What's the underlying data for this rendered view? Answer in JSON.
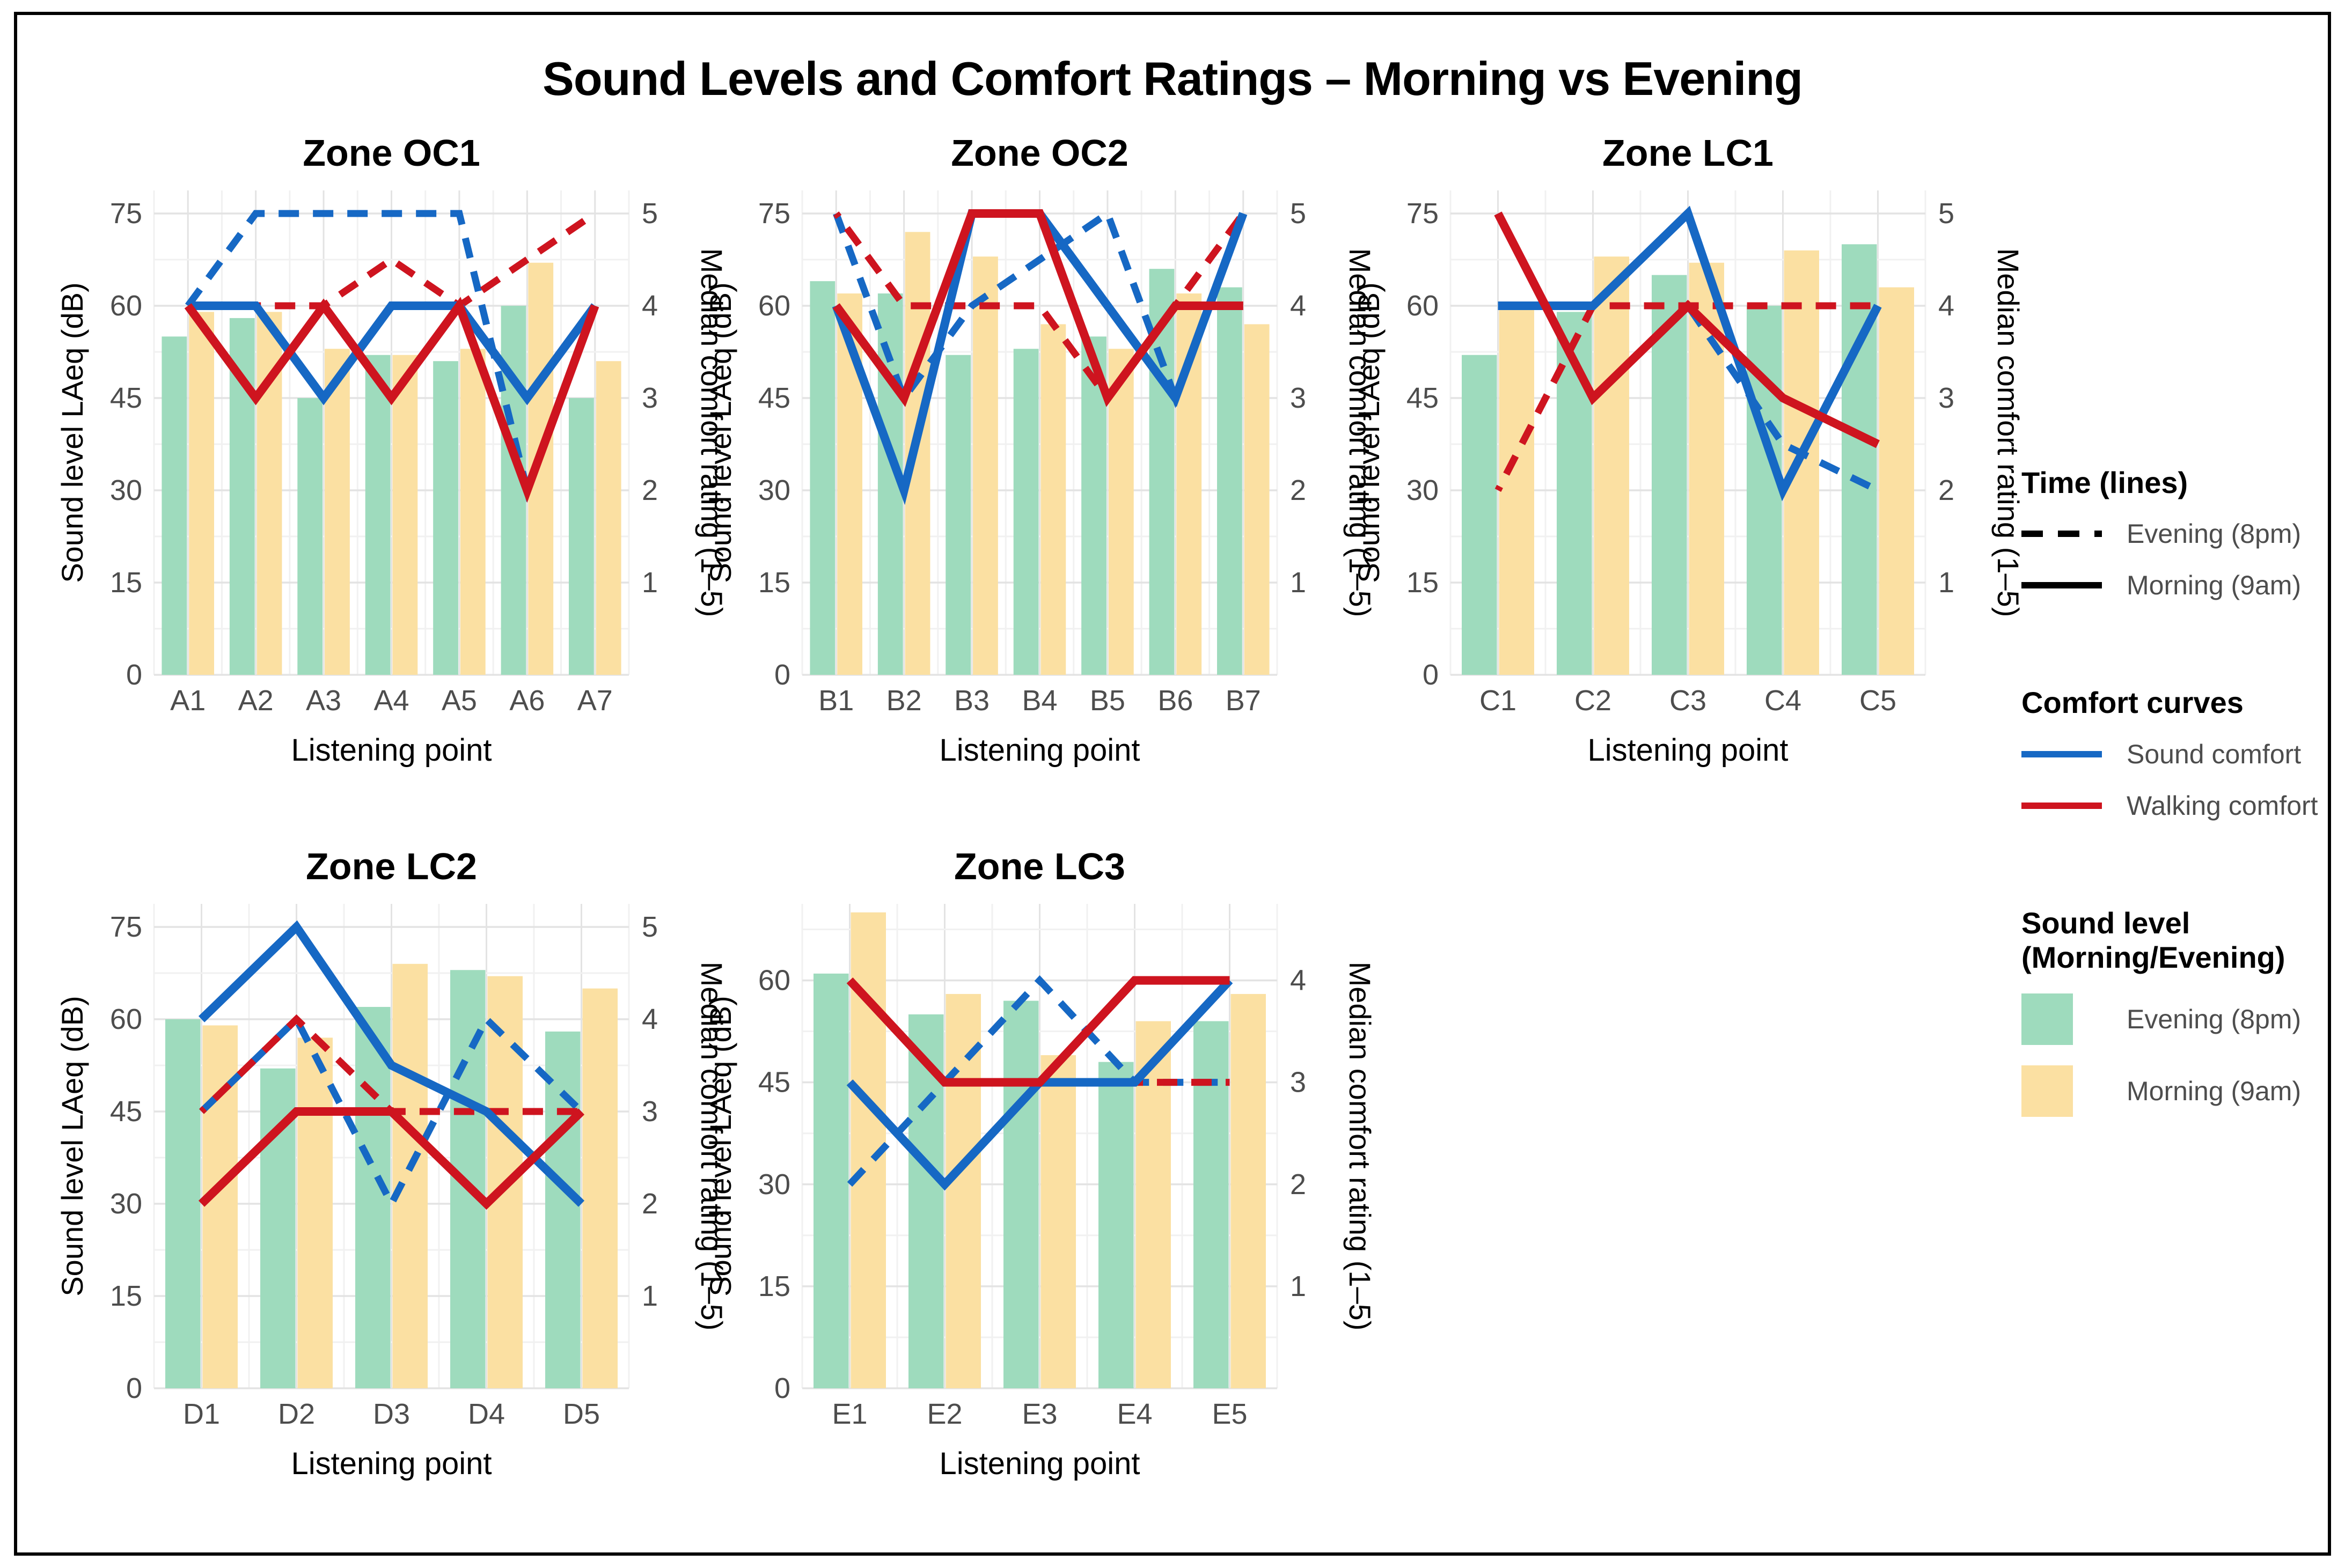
{
  "figure": {
    "title": "Sound Levels and Comfort Ratings – Morning vs Evening"
  },
  "colors": {
    "evening_bar": "#9edbbd",
    "morning_bar": "#fbe0a2",
    "sound_comfort": "#1668c4",
    "walking_comfort": "#ce141f",
    "time_line_key": "#000000",
    "tick_text": "#4d4d4d",
    "grid_major": "#e3e3e3",
    "grid_minor": "#f1f1f1"
  },
  "legend": {
    "time_header": "Time (lines)",
    "time_items": [
      {
        "label": "Evening (8pm)",
        "style": "dashed"
      },
      {
        "label": "Morning (9am)",
        "style": "solid"
      }
    ],
    "comfort_header": "Comfort curves",
    "comfort_items": [
      {
        "label": "Sound comfort",
        "color_key": "sound_comfort"
      },
      {
        "label": "Walking comfort",
        "color_key": "walking_comfort"
      }
    ],
    "sound_header_line1": "Sound level",
    "sound_header_line2": "(Morning/Evening)",
    "sound_items": [
      {
        "label": "Evening (8pm)",
        "color_key": "evening_bar"
      },
      {
        "label": "Morning (9am)",
        "color_key": "morning_bar"
      }
    ]
  },
  "chart_data": [
    {
      "type": "bar+line-dual-axis",
      "title": "Zone OC1",
      "categories": [
        "A1",
        "A2",
        "A3",
        "A4",
        "A5",
        "A6",
        "A7"
      ],
      "xlabel": "Listening point",
      "ylabel_left": "Sound level LAeq (dB)",
      "ylabel_right": "Median comfort rating (1–5)",
      "left_axis_max": 75,
      "ylim_top": 78.75,
      "right_axis_note": "rating r is plotted at 15×r dB",
      "bars_dB": {
        "evening_8pm": [
          55,
          58,
          45,
          52,
          51,
          60,
          45
        ],
        "morning_9am": [
          59,
          59,
          53,
          52,
          53,
          67,
          51
        ]
      },
      "comfort_ratings": {
        "sound_evening": [
          4,
          5,
          5,
          5,
          5,
          2,
          4
        ],
        "sound_morning": [
          4,
          4,
          3,
          4,
          4,
          3,
          4
        ],
        "walking_evening": [
          4,
          4,
          4,
          4.5,
          4,
          4.5,
          5
        ],
        "walking_morning": [
          4,
          3,
          4,
          3,
          4,
          2,
          4
        ]
      }
    },
    {
      "type": "bar+line-dual-axis",
      "title": "Zone OC2",
      "categories": [
        "B1",
        "B2",
        "B3",
        "B4",
        "B5",
        "B6",
        "B7"
      ],
      "xlabel": "Listening point",
      "ylabel_left": "Sound level LAeq (dB)",
      "ylabel_right": "Median comfort rating (1–5)",
      "left_axis_max": 75,
      "ylim_top": 78.75,
      "right_axis_note": "rating r is plotted at 15×r dB",
      "bars_dB": {
        "evening_8pm": [
          64,
          62,
          52,
          53,
          55,
          66,
          63
        ],
        "morning_9am": [
          62,
          72,
          68,
          57,
          53,
          62,
          57
        ]
      },
      "comfort_ratings": {
        "sound_evening": [
          5,
          3,
          4,
          4.5,
          5,
          3,
          5
        ],
        "sound_morning": [
          4,
          2,
          5,
          5,
          4,
          3,
          5
        ],
        "walking_evening": [
          5,
          4,
          4,
          4,
          3,
          4,
          5
        ],
        "walking_morning": [
          4,
          3,
          5,
          5,
          3,
          4,
          4
        ]
      }
    },
    {
      "type": "bar+line-dual-axis",
      "title": "Zone LC1",
      "categories": [
        "C1",
        "C2",
        "C3",
        "C4",
        "C5"
      ],
      "xlabel": "Listening point",
      "ylabel_left": "Sound level LAeq (dB)",
      "ylabel_right": "Median comfort rating (1–5)",
      "left_axis_max": 75,
      "ylim_top": 78.75,
      "right_axis_note": "rating r is plotted at 15×r dB",
      "bars_dB": {
        "evening_8pm": [
          52,
          59,
          65,
          60,
          70
        ],
        "morning_9am": [
          60,
          68,
          67,
          69,
          63
        ]
      },
      "comfort_ratings": {
        "sound_evening": [
          5,
          3,
          4,
          2.5,
          2
        ],
        "sound_morning": [
          4,
          4,
          5,
          2,
          4
        ],
        "walking_evening": [
          2,
          4,
          4,
          4,
          4
        ],
        "walking_morning": [
          5,
          3,
          4,
          3,
          2.5
        ]
      }
    },
    {
      "type": "bar+line-dual-axis",
      "title": "Zone LC2",
      "categories": [
        "D1",
        "D2",
        "D3",
        "D4",
        "D5"
      ],
      "xlabel": "Listening point",
      "ylabel_left": "Sound level LAeq (dB)",
      "ylabel_right": "Median comfort rating (1–5)",
      "left_axis_max": 75,
      "ylim_top": 78.75,
      "right_axis_note": "rating r is plotted at 15×r dB",
      "bars_dB": {
        "evening_8pm": [
          60,
          52,
          62,
          68,
          58
        ],
        "morning_9am": [
          59,
          57,
          69,
          67,
          65
        ]
      },
      "comfort_ratings": {
        "sound_evening": [
          3,
          4,
          2,
          4,
          3
        ],
        "sound_morning": [
          4,
          5,
          3.5,
          3,
          2
        ],
        "walking_evening": [
          3,
          4,
          3,
          3,
          3
        ],
        "walking_morning": [
          2,
          3,
          3,
          2,
          3
        ]
      }
    },
    {
      "type": "bar+line-dual-axis",
      "title": "Zone LC3",
      "categories": [
        "E1",
        "E2",
        "E3",
        "E4",
        "E5"
      ],
      "xlabel": "Listening point",
      "ylabel_left": "Sound level LAeq (dB)",
      "ylabel_right": "Median comfort rating (1–5)",
      "left_axis_max": 60,
      "ylim_top": 71.25,
      "right_axis_note": "rating r is plotted at 15×r dB",
      "bars_dB": {
        "evening_8pm": [
          61,
          55,
          57,
          48,
          54
        ],
        "morning_9am": [
          70,
          58,
          49,
          54,
          58
        ]
      },
      "comfort_ratings": {
        "sound_evening": [
          2,
          3,
          4,
          3,
          3
        ],
        "sound_morning": [
          3,
          2,
          3,
          3,
          4
        ],
        "walking_evening": [
          3,
          2,
          3,
          3,
          3
        ],
        "walking_morning": [
          4,
          3,
          3,
          4,
          4
        ]
      }
    }
  ]
}
